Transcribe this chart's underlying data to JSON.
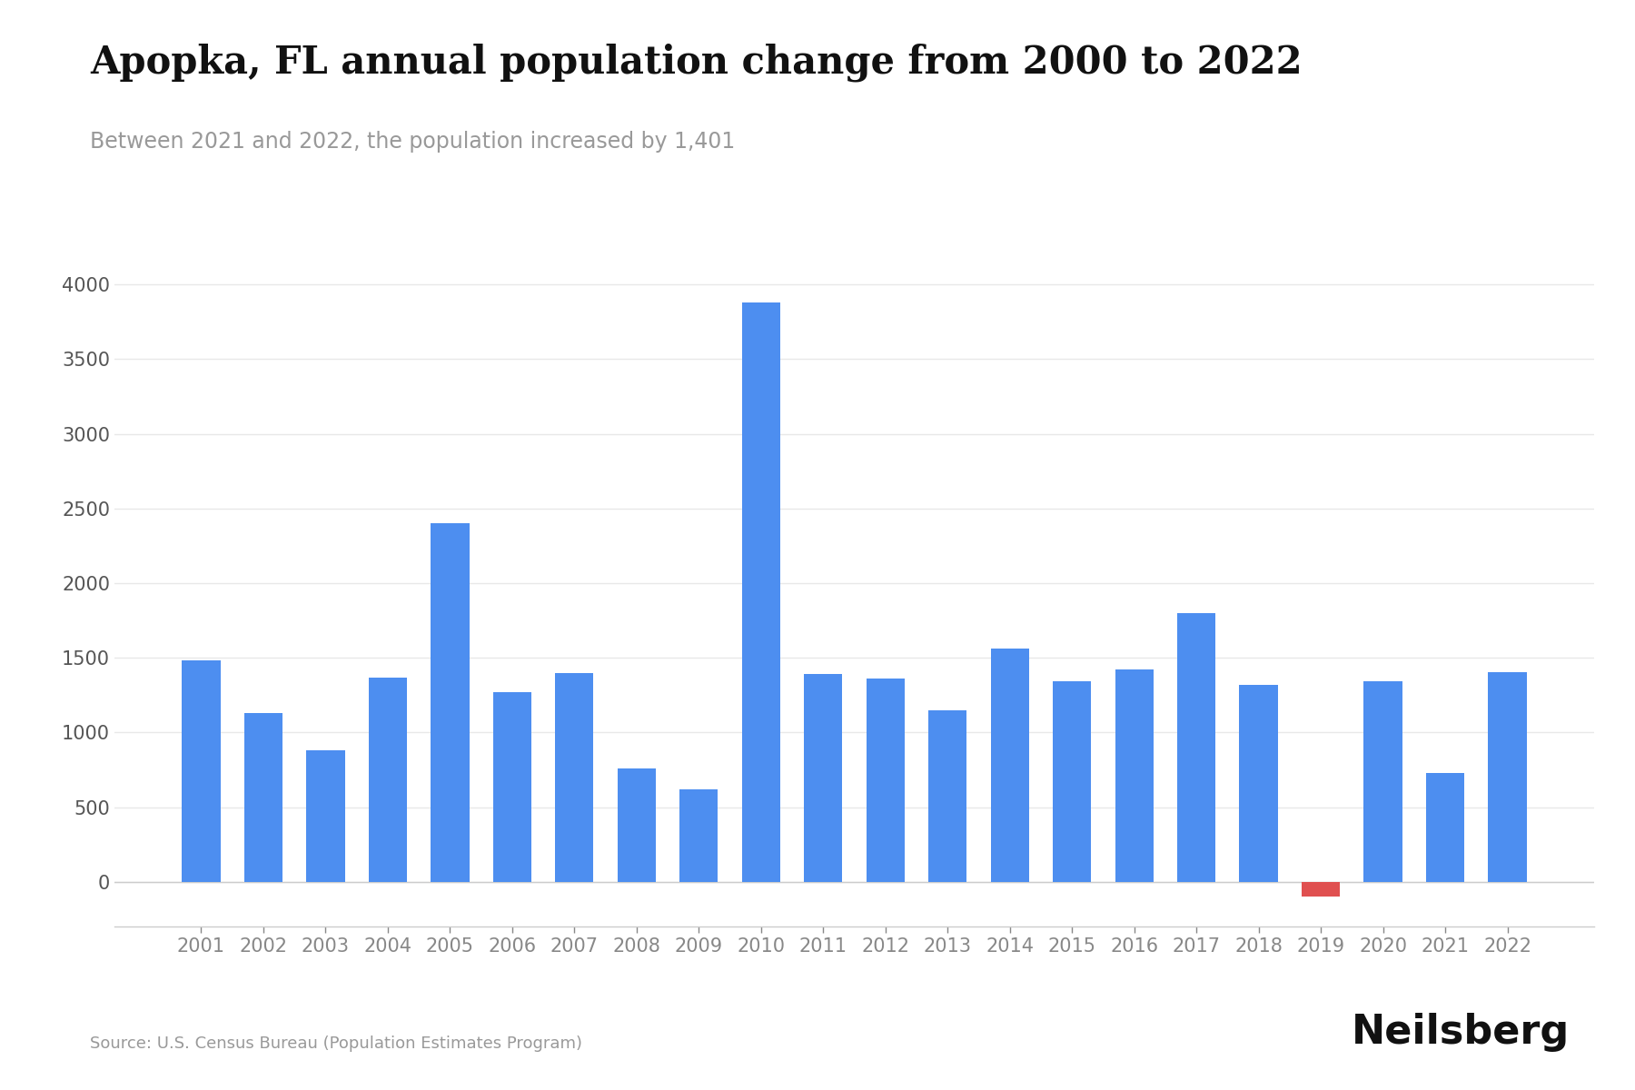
{
  "title": "Apopka, FL annual population change from 2000 to 2022",
  "subtitle": "Between 2021 and 2022, the population increased by 1,401",
  "source": "Source: U.S. Census Bureau (Population Estimates Program)",
  "branding": "Neilsberg",
  "years": [
    2001,
    2002,
    2003,
    2004,
    2005,
    2006,
    2007,
    2008,
    2009,
    2010,
    2011,
    2012,
    2013,
    2014,
    2015,
    2016,
    2017,
    2018,
    2019,
    2020,
    2021,
    2022
  ],
  "values": [
    1480,
    1130,
    880,
    1370,
    2400,
    1270,
    1400,
    760,
    620,
    3880,
    1390,
    1360,
    1150,
    1560,
    1340,
    1420,
    1800,
    1320,
    -100,
    1340,
    730,
    1401
  ],
  "bar_color_positive": "#4d8ef0",
  "bar_color_negative": "#e05050",
  "background_color": "#ffffff",
  "title_fontsize": 30,
  "subtitle_fontsize": 17,
  "source_fontsize": 13,
  "branding_fontsize": 32,
  "tick_fontsize": 15,
  "ylim": [
    -300,
    4300
  ],
  "yticks": [
    0,
    500,
    1000,
    1500,
    2000,
    2500,
    3000,
    3500,
    4000
  ],
  "grid_color": "#e8e8e8",
  "spine_color": "#cccccc",
  "title_color": "#111111",
  "subtitle_color": "#999999",
  "ytick_color": "#555555",
  "xtick_color": "#888888"
}
